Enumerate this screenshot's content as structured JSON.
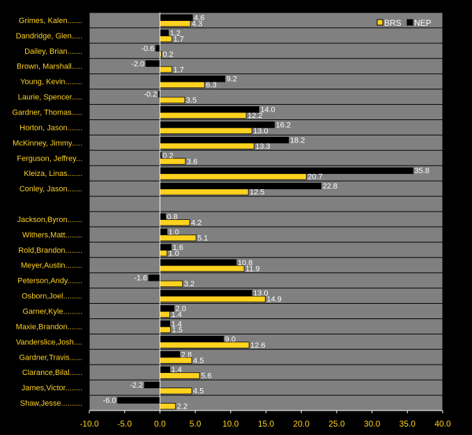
{
  "chart_data": {
    "type": "bar",
    "orientation": "horizontal",
    "categories": [
      "Grimes, Kalen.......",
      "Dandridge, Glen.....",
      "Dailey, Brian.......",
      "Brown, Marshall.....",
      "Young, Kevin........",
      "Laurie, Spencer.....",
      "Gardner, Thomas.....",
      "Horton, Jason.......",
      "McKinney, Jimmy.....",
      "Ferguson, Jeffrey...",
      "Kleiza, Linas.......",
      "Conley, Jason.......",
      "",
      "Jackson,Byron.......",
      "Withers,Matt........",
      "Rold,Brandon........",
      "Meyer,Austin........",
      "Peterson,Andy.......",
      "Osborn,Joel.........",
      "Garner,Kyle.........",
      "Maxie,Brandon.......",
      "Vanderslice,Josh....",
      "Gardner,Travis......",
      "Clarance,Bilal......",
      "James,Victor........",
      "Shaw,Jesse.........."
    ],
    "series": [
      {
        "name": "NEP",
        "color": "#000000",
        "values": [
          4.6,
          1.2,
          -0.6,
          -2.0,
          9.2,
          -0.2,
          14.0,
          16.2,
          18.2,
          0.2,
          35.8,
          22.8,
          null,
          0.8,
          1.0,
          1.6,
          10.8,
          -1.6,
          13.0,
          2.0,
          1.4,
          9.0,
          2.8,
          1.4,
          -2.2,
          -6.0
        ],
        "labels": [
          "4.6",
          "1.2",
          "-0.6",
          "-2.0",
          "9.2",
          "-0.2",
          "14.0",
          "16.2",
          "18.2",
          "0.2",
          "35.8",
          "22.8",
          "",
          "0.8",
          "1.0",
          "1.6",
          "10.8",
          "-1.6",
          "13.0",
          "2.0",
          "1.4",
          "9.0",
          "2.8",
          "1.4",
          "-2.2",
          "-6.0"
        ]
      },
      {
        "name": "BRS",
        "color": "#ffd21f",
        "values": [
          4.3,
          1.7,
          0.2,
          1.7,
          6.3,
          3.5,
          12.2,
          13.0,
          13.3,
          3.6,
          20.7,
          12.5,
          null,
          4.2,
          5.1,
          1.0,
          11.9,
          3.2,
          14.9,
          1.4,
          1.5,
          12.6,
          4.5,
          5.6,
          4.5,
          2.2
        ],
        "labels": [
          "4.3",
          "1.7",
          "0.2",
          "1.7",
          "6.3",
          "3.5",
          "12.2",
          "13.0",
          "13.3",
          "3.6",
          "20.7",
          "12.5",
          "",
          "4.2",
          "5.1",
          "1.0",
          "11.9",
          "3.2",
          "14.9",
          "1.4",
          "1.5",
          "12.6",
          "4.5",
          "5.6",
          "4.5",
          "2.2"
        ]
      }
    ],
    "xlim": [
      -10,
      40
    ],
    "xticks": [
      -10,
      -5,
      0,
      5,
      10,
      15,
      20,
      25,
      30,
      35,
      40
    ],
    "xtick_labels": [
      "-10.0",
      "-5.0",
      "0.0",
      "5.0",
      "10.0",
      "15.0",
      "20.0",
      "25.0",
      "30.0",
      "35.0",
      "40.0"
    ],
    "legend": {
      "entries": [
        "BRS",
        "NEP"
      ],
      "placement": "top-right"
    },
    "grid": true,
    "colors": {
      "background": "#000000",
      "plot_area": "#808080",
      "grid": "#000000",
      "zero_line": "#ffffff",
      "text": "#ffd21f"
    }
  }
}
